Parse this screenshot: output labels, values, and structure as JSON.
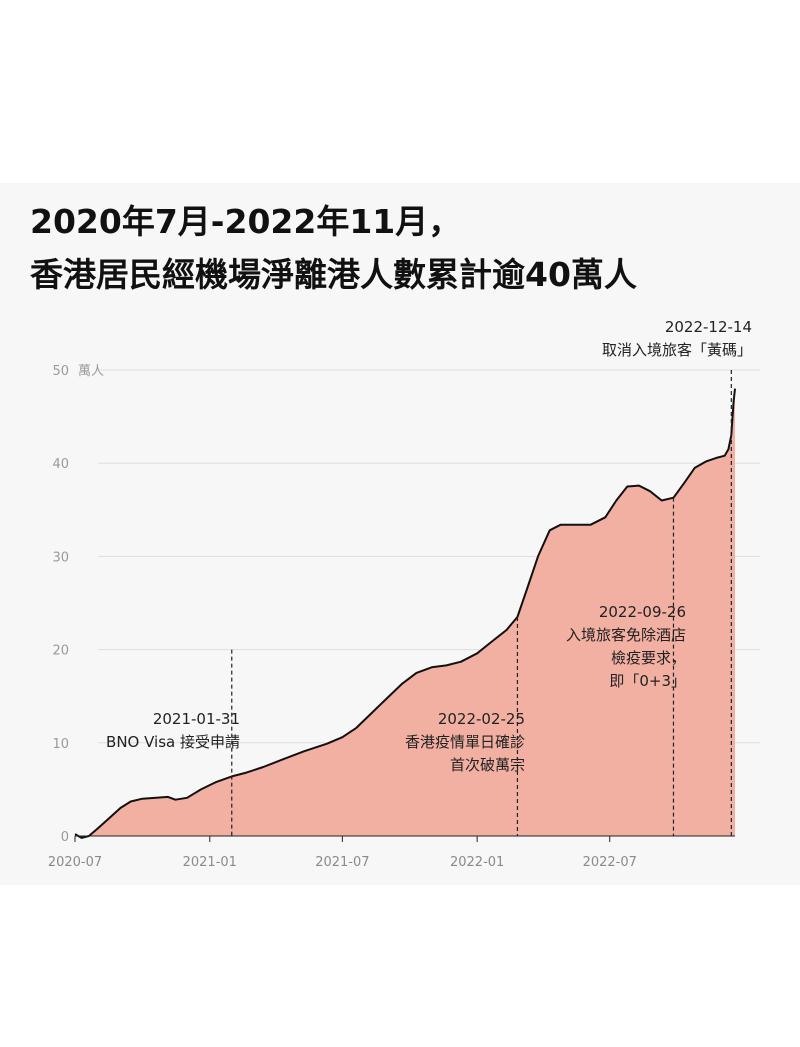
{
  "title_lines": [
    "2020年7月-2022年11月，",
    "香港居民經機場淨離港人數累計逾40萬人"
  ],
  "chart_data": {
    "type": "area",
    "title": "2020年7月-2022年11月，香港居民經機場淨離港人數累計逾40萬人",
    "ylabel": "萬人",
    "ylim": [
      0,
      50
    ],
    "yticks": [
      0,
      10,
      20,
      30,
      40,
      50
    ],
    "ytick_labels": [
      "0",
      "10",
      "20",
      "30",
      "40",
      "50"
    ],
    "y_unit_label": "萬人",
    "xlim": [
      "2020-07-01",
      "2022-12-19"
    ],
    "xticks": [
      "2020-07",
      "2021-01",
      "2021-07",
      "2022-01",
      "2022-07"
    ],
    "grid": true,
    "series": [
      {
        "fill_color": "#f2b0a3",
        "line_color": "#111111",
        "points": [
          [
            "2020-07-01",
            0.2
          ],
          [
            "2020-07-10",
            -0.2
          ],
          [
            "2020-07-20",
            0.0
          ],
          [
            "2020-08-01",
            0.8
          ],
          [
            "2020-08-15",
            1.8
          ],
          [
            "2020-09-01",
            3.0
          ],
          [
            "2020-09-15",
            3.7
          ],
          [
            "2020-10-01",
            4.0
          ],
          [
            "2020-10-20",
            4.1
          ],
          [
            "2020-11-05",
            4.2
          ],
          [
            "2020-11-15",
            3.9
          ],
          [
            "2020-12-01",
            4.1
          ],
          [
            "2020-12-20",
            5.0
          ],
          [
            "2021-01-10",
            5.8
          ],
          [
            "2021-01-31",
            6.4
          ],
          [
            "2021-02-20",
            6.8
          ],
          [
            "2021-03-15",
            7.4
          ],
          [
            "2021-04-10",
            8.2
          ],
          [
            "2021-05-10",
            9.1
          ],
          [
            "2021-06-10",
            9.9
          ],
          [
            "2021-07-01",
            10.6
          ],
          [
            "2021-07-20",
            11.6
          ],
          [
            "2021-08-10",
            13.2
          ],
          [
            "2021-08-31",
            14.8
          ],
          [
            "2021-09-20",
            16.3
          ],
          [
            "2021-10-10",
            17.5
          ],
          [
            "2021-10-31",
            18.1
          ],
          [
            "2021-11-20",
            18.3
          ],
          [
            "2021-12-10",
            18.7
          ],
          [
            "2022-01-01",
            19.6
          ],
          [
            "2022-01-20",
            20.8
          ],
          [
            "2022-02-10",
            22.1
          ],
          [
            "2022-02-25",
            23.5
          ],
          [
            "2022-03-10",
            26.5
          ],
          [
            "2022-03-25",
            30.0
          ],
          [
            "2022-04-10",
            32.8
          ],
          [
            "2022-04-25",
            33.4
          ],
          [
            "2022-05-15",
            33.4
          ],
          [
            "2022-06-05",
            33.4
          ],
          [
            "2022-06-25",
            34.2
          ],
          [
            "2022-07-10",
            36.0
          ],
          [
            "2022-07-25",
            37.5
          ],
          [
            "2022-08-10",
            37.6
          ],
          [
            "2022-08-25",
            37.0
          ],
          [
            "2022-09-10",
            36.0
          ],
          [
            "2022-09-26",
            36.3
          ],
          [
            "2022-10-10",
            37.8
          ],
          [
            "2022-10-25",
            39.5
          ],
          [
            "2022-11-10",
            40.2
          ],
          [
            "2022-11-25",
            40.6
          ],
          [
            "2022-12-05",
            40.8
          ],
          [
            "2022-12-10",
            41.5
          ],
          [
            "2022-12-14",
            43.0
          ],
          [
            "2022-12-17",
            46.5
          ],
          [
            "2022-12-19",
            48.0
          ]
        ]
      }
    ],
    "annotations": [
      {
        "date": "2021-01-31",
        "lines": [
          "2021-01-31",
          "BNO Visa 接受申請"
        ],
        "line_top": 20
      },
      {
        "date": "2022-02-25",
        "lines": [
          "2022-02-25",
          "香港疫情單日確診",
          "首次破萬宗"
        ],
        "line_top": 23.5
      },
      {
        "date": "2022-09-26",
        "lines": [
          "2022-09-26",
          "入境旅客免除酒店",
          "檢疫要求，",
          "即「0+3」"
        ],
        "line_top": 36.3
      },
      {
        "date": "2022-12-14",
        "lines": [
          "2022-12-14",
          "取消入境旅客「黃碼」"
        ],
        "line_top": 50
      }
    ]
  }
}
